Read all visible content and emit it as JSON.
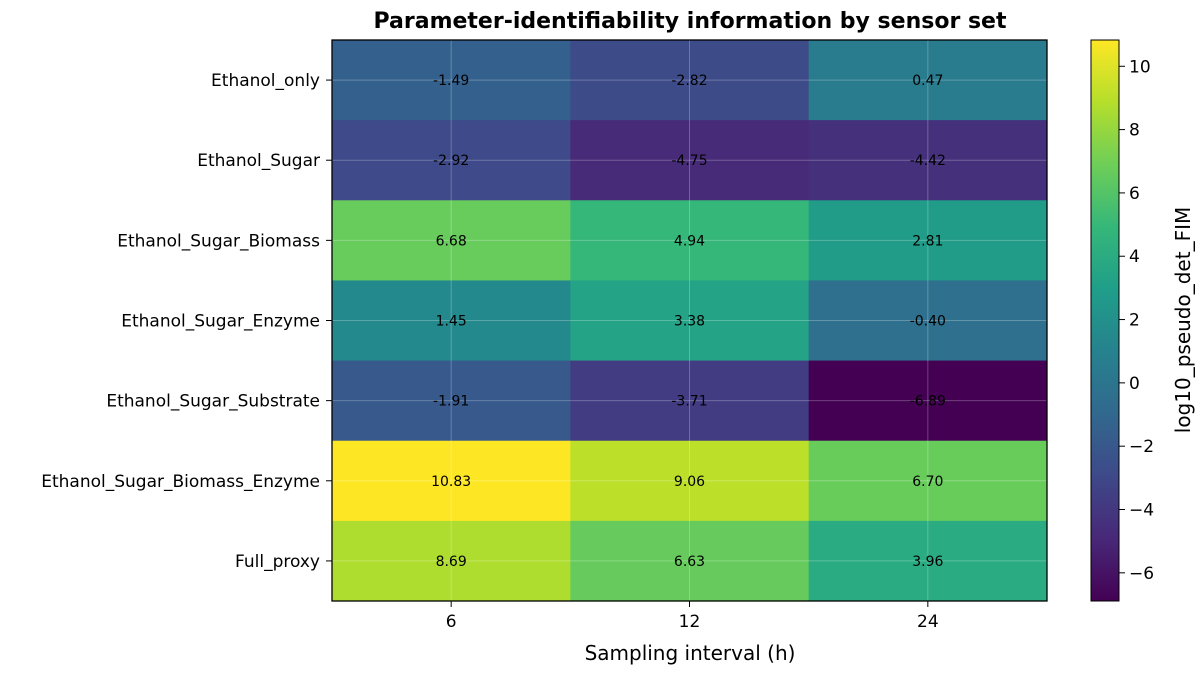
{
  "chart_data": {
    "type": "heatmap",
    "title": "Parameter-identifiability information by sensor set",
    "xlabel": "Sampling interval (h)",
    "ylabel": "",
    "x_categories": [
      "6",
      "12",
      "24"
    ],
    "y_categories": [
      "Ethanol_only",
      "Ethanol_Sugar",
      "Ethanol_Sugar_Biomass",
      "Ethanol_Sugar_Enzyme",
      "Ethanol_Sugar_Substrate",
      "Ethanol_Sugar_Biomass_Enzyme",
      "Full_proxy"
    ],
    "values": [
      [
        -1.49,
        -2.82,
        0.47
      ],
      [
        -2.92,
        -4.75,
        -4.42
      ],
      [
        6.68,
        4.94,
        2.81
      ],
      [
        1.45,
        3.38,
        -0.4
      ],
      [
        -1.91,
        -3.71,
        -6.89
      ],
      [
        10.83,
        9.06,
        6.7
      ],
      [
        8.69,
        6.63,
        3.96
      ]
    ],
    "cell_labels": [
      [
        "-1.49",
        "-2.82",
        "0.47"
      ],
      [
        "-2.92",
        "-4.75",
        "-4.42"
      ],
      [
        "6.68",
        "4.94",
        "2.81"
      ],
      [
        "1.45",
        "3.38",
        "-0.40"
      ],
      [
        "-1.91",
        "-3.71",
        "-6.89"
      ],
      [
        "10.83",
        "9.06",
        "6.70"
      ],
      [
        "8.69",
        "6.63",
        "3.96"
      ]
    ],
    "colorbar": {
      "label": "log10_pseudo_det_FIM",
      "range": [
        -6.89,
        10.83
      ],
      "ticks": [
        -6,
        -4,
        -2,
        0,
        2,
        4,
        6,
        8,
        10
      ],
      "tick_labels": [
        "−6",
        "−4",
        "−2",
        "0",
        "2",
        "4",
        "6",
        "8",
        "10"
      ],
      "colormap": "viridis"
    },
    "grid": true
  }
}
